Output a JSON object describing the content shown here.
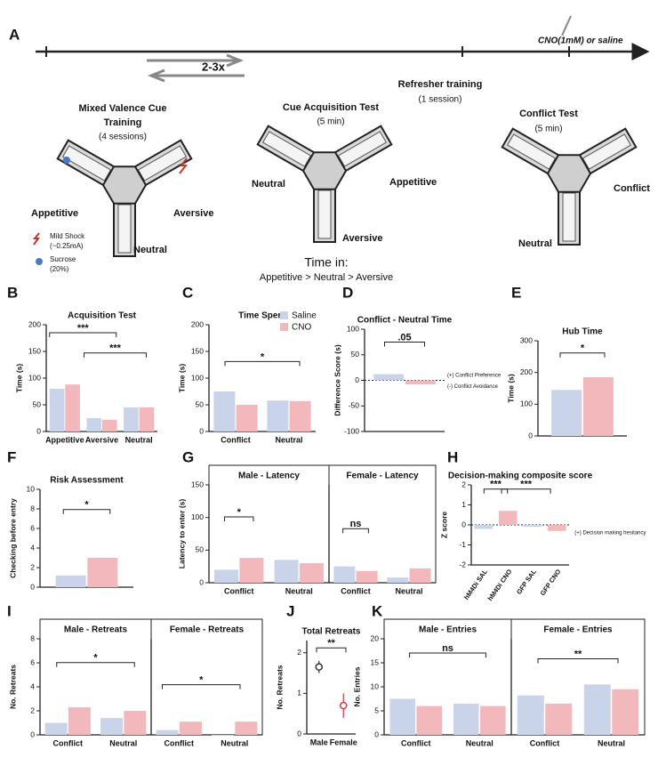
{
  "panel_a": {
    "letter": "A",
    "repeat": "2-3x",
    "drug": "CNO(1mM) or saline",
    "training_1": "Mixed Valence Cue",
    "training_2": "Training",
    "training_sessions": "(4 sessions)",
    "acq_test": "Cue Acquisition Test",
    "acq_duration": "(5 min)",
    "refresher": "Refresher training",
    "refresher_sessions": "(1 session)",
    "conflict_test": "Conflict Test",
    "conflict_duration": "(5 min)",
    "m1_appetitive": "Appetitive",
    "m1_aversive": "Aversive",
    "m1_neutral": "Neutral",
    "shock_1": "Mild Shock",
    "shock_2": "(~0.25mA)",
    "sucrose_1": "Sucrose",
    "sucrose_2": "(20%)",
    "m2_neutral": "Neutral",
    "m2_appetitive": "Appetitive",
    "m2_aversive": "Aversive",
    "time_in": "Time in:",
    "time_order": "Appetitive > Neutral > Aversive",
    "m3_conflict": "Conflict",
    "m3_neutral": "Neutral"
  },
  "chart_data": [
    {
      "type": "bar",
      "panel": "B",
      "title": "Acquisition Test",
      "ylabel": "Time (s)",
      "categories": [
        "Appetitive",
        "Aversive",
        "Neutral"
      ],
      "series": [
        {
          "color": "#c9d3ea",
          "values": [
            80,
            25,
            45
          ]
        },
        {
          "color": "#f2b8bb",
          "values": [
            88,
            22,
            45
          ]
        }
      ],
      "ylim": [
        0,
        200
      ],
      "yticks": [
        0,
        50,
        100,
        150,
        200
      ],
      "annotations": [
        "***",
        "***"
      ]
    },
    {
      "type": "bar",
      "panel": "C",
      "title": "Time Spent",
      "ylabel": "Time (s)",
      "categories": [
        "Conflict",
        "Neutral"
      ],
      "series": [
        {
          "name": "Saline",
          "color": "#c9d3ea",
          "values": [
            75,
            58
          ]
        },
        {
          "name": "CNO",
          "color": "#f2b8bb",
          "values": [
            50,
            57
          ]
        }
      ],
      "ylim": [
        0,
        200
      ],
      "yticks": [
        0,
        50,
        100,
        150,
        200
      ],
      "legend": "upper right",
      "annotations": [
        "*"
      ]
    },
    {
      "type": "bar",
      "panel": "D",
      "title": "Conflict - Neutral Time",
      "ylabel": "Difference Score (s)",
      "categories": [
        null
      ],
      "series": [
        {
          "color": "#c9d3ea",
          "values": [
            12
          ]
        },
        {
          "color": "#f2b8bb",
          "values": [
            -8
          ]
        }
      ],
      "ylim": [
        -100,
        100
      ],
      "yticks": [
        -100,
        -50,
        0,
        50,
        100
      ],
      "annotations": [
        ".05",
        "(+) Conflict Preference",
        "(-) Conflict Avoidance"
      ]
    },
    {
      "type": "bar",
      "panel": "E",
      "title": "Hub Time",
      "ylabel": "Time (s)",
      "categories": [
        null
      ],
      "series": [
        {
          "color": "#c9d3ea",
          "values": [
            145
          ]
        },
        {
          "color": "#f2b8bb",
          "values": [
            185
          ]
        }
      ],
      "ylim": [
        0,
        300
      ],
      "yticks": [
        0,
        100,
        200,
        300
      ],
      "annotations": [
        "*"
      ]
    },
    {
      "type": "bar",
      "panel": "F",
      "title": "Risk Assessment",
      "ylabel": "Checking before entry",
      "categories": [
        null
      ],
      "series": [
        {
          "color": "#c9d3ea",
          "values": [
            1.2
          ]
        },
        {
          "color": "#f2b8bb",
          "values": [
            3.0
          ]
        }
      ],
      "ylim": [
        0,
        10
      ],
      "yticks": [
        0,
        2,
        4,
        6,
        8,
        10
      ],
      "annotations": [
        "*"
      ]
    },
    {
      "type": "bar",
      "panel": "G",
      "title": "Male - Latency",
      "ylabel": "Latency to enter (s)",
      "categories": [
        "Conflict",
        "Neutral"
      ],
      "series": [
        {
          "color": "#c9d3ea",
          "values": [
            20,
            35
          ]
        },
        {
          "color": "#f2b8bb",
          "values": [
            38,
            30
          ]
        }
      ],
      "ylim": [
        0,
        150
      ],
      "yticks": [
        0,
        50,
        100,
        150
      ],
      "annotations": [
        "*"
      ]
    },
    {
      "type": "bar",
      "title": "Female - Latency",
      "categories": [
        "Conflict",
        "Neutral"
      ],
      "series": [
        {
          "color": "#c9d3ea",
          "values": [
            25,
            8
          ]
        },
        {
          "color": "#f2b8bb",
          "values": [
            18,
            22
          ]
        }
      ],
      "ylim": [
        0,
        150
      ],
      "annotations": [
        "ns"
      ]
    },
    {
      "type": "bar",
      "panel": "H",
      "title": "Decision-making composite score",
      "ylabel": "Z score",
      "categories": [
        "hM4Di SAL",
        "hM4Di CNO",
        "GFP SAL",
        "GFP CNO"
      ],
      "values": [
        -0.2,
        0.7,
        -0.1,
        -0.3
      ],
      "colors": [
        "#c9d3ea",
        "#f2b8bb",
        "#c9d3ea",
        "#f2b8bb"
      ],
      "ylim": [
        -2,
        2
      ],
      "yticks": [
        -2,
        -1,
        0,
        1,
        2
      ],
      "annotations": [
        "***",
        "***",
        "(+) Decision making hesitancy"
      ]
    },
    {
      "type": "bar",
      "panel": "I",
      "title": "Male - Retreats",
      "ylabel": "No. Retreats",
      "categories": [
        "Conflict",
        "Neutral"
      ],
      "series": [
        {
          "color": "#c9d3ea",
          "values": [
            1.0,
            1.4
          ]
        },
        {
          "color": "#f2b8bb",
          "values": [
            2.3,
            2.0
          ]
        }
      ],
      "ylim": [
        0,
        8
      ],
      "yticks": [
        0,
        2,
        4,
        6,
        8
      ],
      "annotations": [
        "*"
      ]
    },
    {
      "type": "bar",
      "title": "Female - Retreats",
      "categories": [
        "Conflict",
        "Neutral"
      ],
      "series": [
        {
          "color": "#c9d3ea",
          "values": [
            0.4,
            0.0
          ]
        },
        {
          "color": "#f2b8bb",
          "values": [
            1.1,
            1.1
          ]
        }
      ],
      "ylim": [
        0,
        8
      ],
      "annotations": [
        "*"
      ]
    },
    {
      "type": "scatter",
      "panel": "J",
      "title": "Total Retreats",
      "ylabel": "No. Retreats",
      "categories": [
        "Male",
        "Female"
      ],
      "values": [
        1.65,
        0.7
      ],
      "errors": [
        0.15,
        0.3
      ],
      "colors": [
        "#333333",
        "#d9363e"
      ],
      "ylim": [
        0,
        2.3
      ],
      "yticks": [
        0,
        1,
        2
      ],
      "annotations": [
        "**"
      ]
    },
    {
      "type": "bar",
      "panel": "K",
      "title": "Male - Entries",
      "ylabel": "No. Entries",
      "categories": [
        "Conflict",
        "Neutral"
      ],
      "series": [
        {
          "color": "#c9d3ea",
          "values": [
            7.5,
            6.5
          ]
        },
        {
          "color": "#f2b8bb",
          "values": [
            6,
            6
          ]
        }
      ],
      "ylim": [
        0,
        20
      ],
      "yticks": [
        0,
        5,
        10,
        15,
        20
      ],
      "annotations": [
        "ns"
      ]
    },
    {
      "type": "bar",
      "title": "Female - Entries",
      "categories": [
        "Conflict",
        "Neutral"
      ],
      "series": [
        {
          "color": "#c9d3ea",
          "values": [
            8.2,
            10.5
          ]
        },
        {
          "color": "#f2b8bb",
          "values": [
            6.5,
            9.5
          ]
        }
      ],
      "ylim": [
        0,
        20
      ],
      "annotations": [
        "**"
      ]
    }
  ]
}
